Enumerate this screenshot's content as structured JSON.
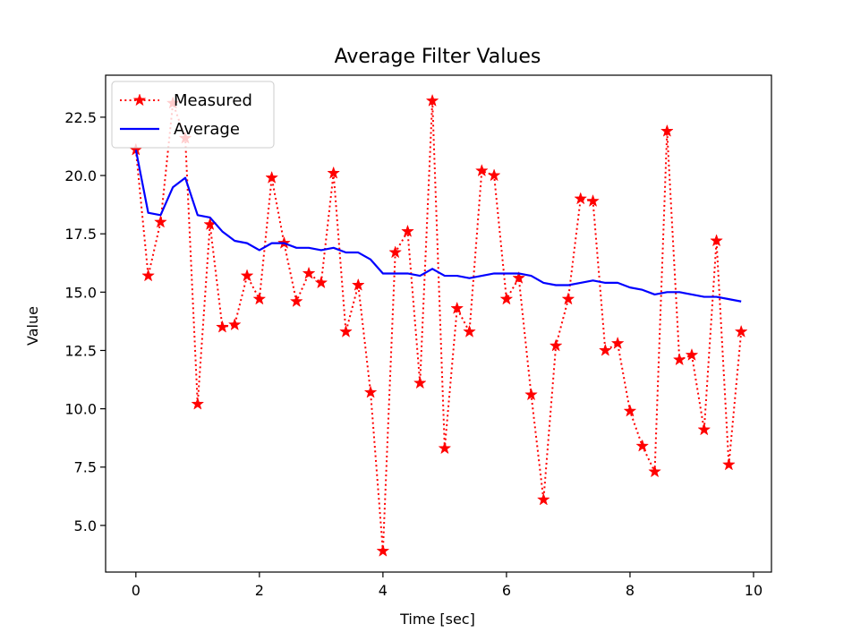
{
  "chart_data": {
    "type": "line",
    "title": "Average Filter Values",
    "xlabel": "Time [sec]",
    "ylabel": "Value",
    "xlim": [
      -0.49,
      10.29
    ],
    "ylim": [
      3.0,
      24.3
    ],
    "xticks": [
      0,
      2,
      4,
      6,
      8,
      10
    ],
    "xtick_labels": [
      "0",
      "2",
      "4",
      "6",
      "8",
      "10"
    ],
    "yticks": [
      5.0,
      7.5,
      10.0,
      12.5,
      15.0,
      17.5,
      20.0,
      22.5
    ],
    "ytick_labels": [
      "5.0",
      "7.5",
      "10.0",
      "12.5",
      "15.0",
      "17.5",
      "20.0",
      "22.5"
    ],
    "grid": false,
    "legend_position": "top-left",
    "x": [
      0.0,
      0.2,
      0.4,
      0.6,
      0.8,
      1.0,
      1.2,
      1.4,
      1.6,
      1.8,
      2.0,
      2.2,
      2.4,
      2.6,
      2.8,
      3.0,
      3.2,
      3.4,
      3.6,
      3.8,
      4.0,
      4.2,
      4.4,
      4.6,
      4.8,
      5.0,
      5.2,
      5.4,
      5.6,
      5.8,
      6.0,
      6.2,
      6.4,
      6.6,
      6.8,
      7.0,
      7.2,
      7.4,
      7.6,
      7.8,
      8.0,
      8.2,
      8.4,
      8.6,
      8.8,
      9.0,
      9.2,
      9.4,
      9.6,
      9.8
    ],
    "series": [
      {
        "name": "Measured",
        "style": "dotted-star",
        "color": "#ff0000",
        "values": [
          21.1,
          15.7,
          18.0,
          23.1,
          21.6,
          10.2,
          17.9,
          13.5,
          13.6,
          15.7,
          14.7,
          19.9,
          17.1,
          14.6,
          15.8,
          15.4,
          20.1,
          13.3,
          15.3,
          10.7,
          3.9,
          16.7,
          17.6,
          11.1,
          23.2,
          8.3,
          14.3,
          13.3,
          20.2,
          20.0,
          14.7,
          15.6,
          10.6,
          6.1,
          12.7,
          14.7,
          19.0,
          18.9,
          12.5,
          12.8,
          9.9,
          8.4,
          7.3,
          21.9,
          12.1,
          12.3,
          9.1,
          17.2,
          7.6,
          13.3
        ]
      },
      {
        "name": "Average",
        "style": "solid",
        "color": "#0000ff",
        "values": [
          21.1,
          18.4,
          18.3,
          19.5,
          19.9,
          18.3,
          18.2,
          17.6,
          17.2,
          17.1,
          16.8,
          17.1,
          17.1,
          16.9,
          16.9,
          16.8,
          16.9,
          16.7,
          16.7,
          16.4,
          15.8,
          15.8,
          15.8,
          15.7,
          16.0,
          15.7,
          15.7,
          15.6,
          15.7,
          15.8,
          15.8,
          15.8,
          15.7,
          15.4,
          15.3,
          15.3,
          15.4,
          15.5,
          15.4,
          15.4,
          15.2,
          15.1,
          14.9,
          15.0,
          15.0,
          14.9,
          14.8,
          14.8,
          14.7,
          14.6
        ]
      }
    ]
  }
}
